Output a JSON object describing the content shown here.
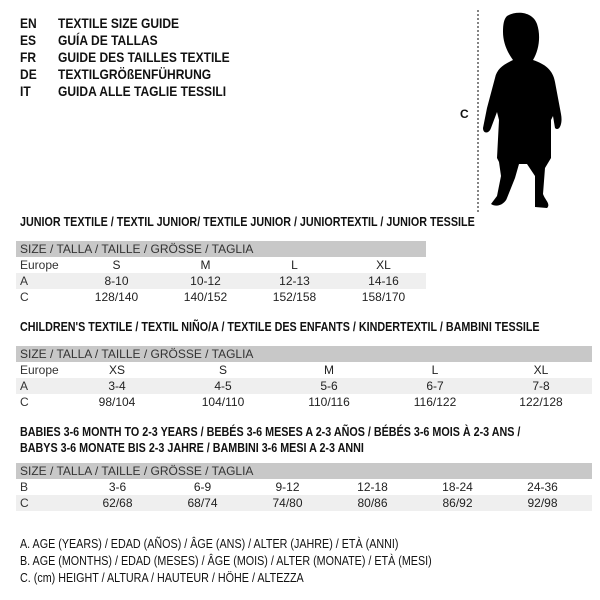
{
  "header": {
    "languages": [
      {
        "code": "EN",
        "title": "TEXTILE SIZE GUIDE"
      },
      {
        "code": "ES",
        "title": "GUÍA DE TALLAS"
      },
      {
        "code": "FR",
        "title": "GUIDE DES TAILLES TEXTILE"
      },
      {
        "code": "DE",
        "title": "TEXTILGRÖßENFÜHRUNG"
      },
      {
        "code": "IT",
        "title": "GUIDA ALLE TAGLIE TESSILI"
      }
    ]
  },
  "figure": {
    "measure_label": "C",
    "icon": "child-silhouette"
  },
  "tables": [
    {
      "title_lines": [
        "JUNIOR TEXTILE / TEXTIL JUNIOR/ TEXTILE JUNIOR / JUNIORTEXTIL / JUNIOR TESSILE"
      ],
      "header": "SIZE / TALLA / TAILLE / GRÖSSE / TAGLIA",
      "rows": [
        {
          "label": "Europe",
          "values": [
            "S",
            "M",
            "L",
            "XL"
          ]
        },
        {
          "label": "A",
          "values": [
            "8-10",
            "10-12",
            "12-13",
            "14-16"
          ]
        },
        {
          "label": "C",
          "values": [
            "128/140",
            "140/152",
            "152/158",
            "158/170"
          ]
        }
      ]
    },
    {
      "title_lines": [
        "CHILDREN'S TEXTILE / TEXTIL NIÑO/A / TEXTILE DES ENFANTS / KINDERTEXTIL / BAMBINI TESSILE"
      ],
      "header": "SIZE / TALLA / TAILLE / GRÖSSE / TAGLIA",
      "rows": [
        {
          "label": "Europe",
          "values": [
            "XS",
            "S",
            "M",
            "L",
            "XL"
          ]
        },
        {
          "label": "A",
          "values": [
            "3-4",
            "4-5",
            "5-6",
            "6-7",
            "7-8"
          ]
        },
        {
          "label": "C",
          "values": [
            "98/104",
            "104/110",
            "110/116",
            "116/122",
            "122/128"
          ]
        }
      ]
    },
    {
      "title_lines": [
        "BABIES 3-6 MONTH TO 2-3 YEARS / BEBÉS 3-6 MESES A 2-3 AÑOS / BÉBÉS 3-6 MOIS À 2-3 ANS /",
        "BABYS 3-6 MONATE BIS 2-3 JAHRE / BAMBINI 3-6 MESI A 2-3 ANNI"
      ],
      "header": "SIZE / TALLA / TAILLE / GRÖSSE / TAGLIA",
      "rows": [
        {
          "label": "B",
          "values": [
            "3-6",
            "6-9",
            "9-12",
            "12-18",
            "18-24",
            "24-36"
          ]
        },
        {
          "label": "C",
          "values": [
            "62/68",
            "68/74",
            "74/80",
            "80/86",
            "86/92",
            "92/98"
          ]
        }
      ]
    }
  ],
  "notes": [
    "A. AGE (YEARS) / EDAD (AÑOS) / ÂGE (ANS) / ALTER (JAHRE) / ETÀ (ANNI)",
    "B. AGE (MONTHS) / EDAD (MESES) / ÂGE (MOIS) / ALTER (MONATE) / ETÀ (MESI)",
    "C. (cm) HEIGHT / ALTURA / HAUTEUR / HÖHE / ALTEZZA"
  ],
  "colors": {
    "header_bg": "#c8c8c8",
    "shade_bg": "#efefef"
  }
}
